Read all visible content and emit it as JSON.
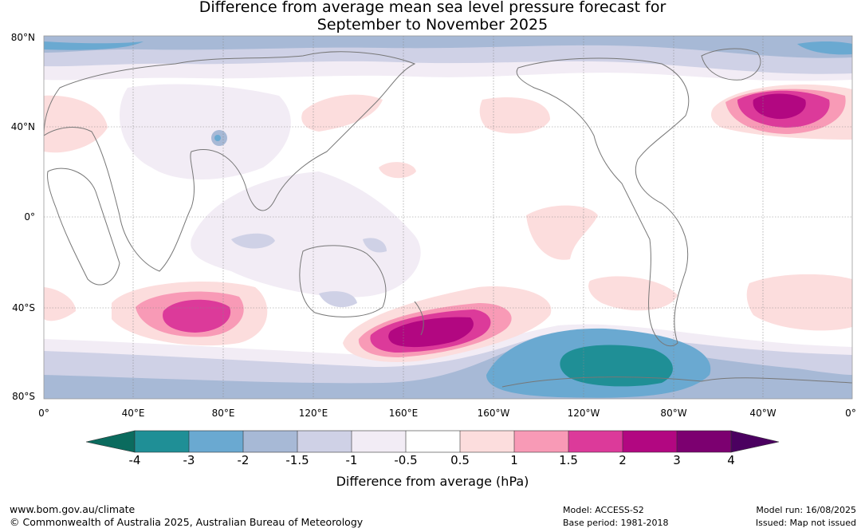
{
  "title": {
    "line1": "Difference from average mean sea level pressure forecast for",
    "line2": "September to November 2025"
  },
  "map": {
    "lat_labels": [
      "80°N",
      "40°N",
      "0°",
      "40°S",
      "80°S"
    ],
    "lon_labels": [
      "0°",
      "40°E",
      "80°E",
      "120°E",
      "160°E",
      "160°W",
      "120°W",
      "80°W",
      "40°W",
      "0°"
    ],
    "contour_areas": [
      {
        "region": "north-atlantic",
        "max_hpa": 3
      },
      {
        "region": "south-indian-ocean",
        "max_hpa": 2
      },
      {
        "region": "south-pacific-east-of-new-zealand",
        "max_hpa": 3
      },
      {
        "region": "southern-ocean-amundsen-sea",
        "min_hpa": -3
      }
    ]
  },
  "colorbar": {
    "label": "Difference from average (hPa)",
    "ticks": [
      "-4",
      "-3",
      "-2",
      "-1.5",
      "-1",
      "-0.5",
      "0.5",
      "1",
      "1.5",
      "2",
      "3",
      "4"
    ],
    "colors": {
      "lt_m4": "#0b6b5e",
      "m4_m3": "#1f8f96",
      "m3_m2": "#6aa9d1",
      "m2_m15": "#a7b9d6",
      "m15_m1": "#cfd1e6",
      "m1_m05": "#f2ecf5",
      "m05_05": "#ffffff",
      "p05_1": "#fcdddd",
      "p1_15": "#f89ab6",
      "p15_2": "#dc3a9a",
      "p2_3": "#b20781",
      "p3_4": "#7c0070",
      "gt_4": "#4b0060"
    }
  },
  "footer": {
    "url": "www.bom.gov.au/climate",
    "copyright": "© Commonwealth of Australia 2025, Australian Bureau of Meteorology",
    "model": "Model: ACCESS-S2",
    "base_period": "Base period: 1981-2018",
    "model_run": "Model run: 16/08/2025",
    "issued": "Issued: Map not issued"
  }
}
